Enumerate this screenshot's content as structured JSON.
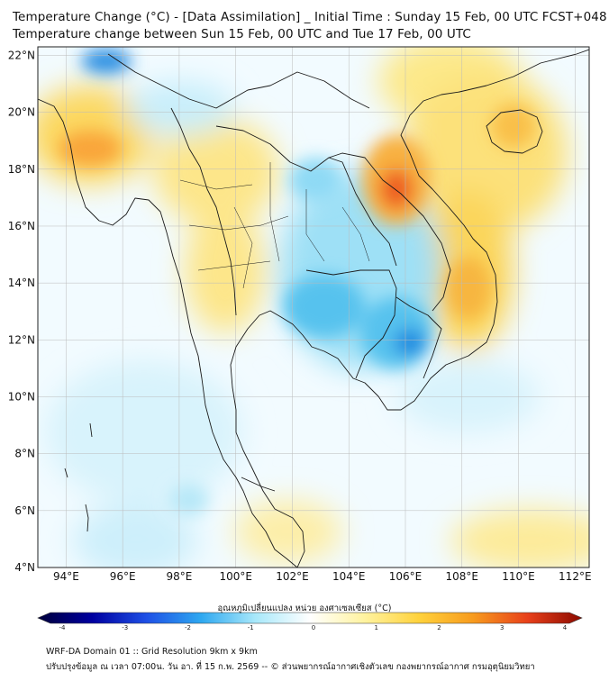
{
  "header": {
    "title_line1": "Temperature Change (°C) - [Data Assimilation] _ Initial Time : Sunday 15 Feb, 00 UTC FCST+048",
    "title_line2": "Temperature change between Sun 15 Feb, 00 UTC and Tue 17 Feb, 00 UTC"
  },
  "map": {
    "lat_labels": [
      "22°N",
      "20°N",
      "18°N",
      "16°N",
      "14°N",
      "12°N",
      "10°N",
      "8°N",
      "6°N",
      "4°N"
    ],
    "lon_labels": [
      "94°E",
      "96°E",
      "98°E",
      "100°E",
      "102°E",
      "104°E",
      "106°E",
      "108°E",
      "110°E",
      "112°E"
    ],
    "lat_values": [
      22,
      20,
      18,
      16,
      14,
      12,
      10,
      8,
      6,
      4
    ],
    "lon_values": [
      94,
      96,
      98,
      100,
      102,
      104,
      106,
      108,
      110,
      112
    ],
    "extent": {
      "lon_min": 93.0,
      "lon_max": 112.5,
      "lat_min": 4.0,
      "lat_max": 22.3
    }
  },
  "colorbar": {
    "title": "อุณหภูมิเปลี่ยนแปลง หน่วย องศาเซลเซียส (°C)",
    "tick_labels": [
      "-4",
      "-3",
      "-2",
      "-1",
      "0",
      "1",
      "2",
      "3",
      "4"
    ],
    "min": -4,
    "max": 4,
    "colors": [
      "#00003a",
      "#0000a0",
      "#1e50e6",
      "#2ea8f0",
      "#a8e8fa",
      "#ffffff",
      "#fff3a0",
      "#ffd23c",
      "#f79b1e",
      "#e8401a",
      "#8b0a00"
    ]
  },
  "footer": {
    "line1": "WRF-DA Domain 01 :: Grid Resolution 9km x 9km",
    "line2": "ปรับปรุงข้อมูล ณ เวลา 07:00น. วัน อา. ที่ 15 ก.พ. 2569 -- © ส่วนพยากรณ์อากาศเชิงตัวเลข กองพยากรณ์อากาศ กรมอุตุนิยมวิทยา"
  }
}
